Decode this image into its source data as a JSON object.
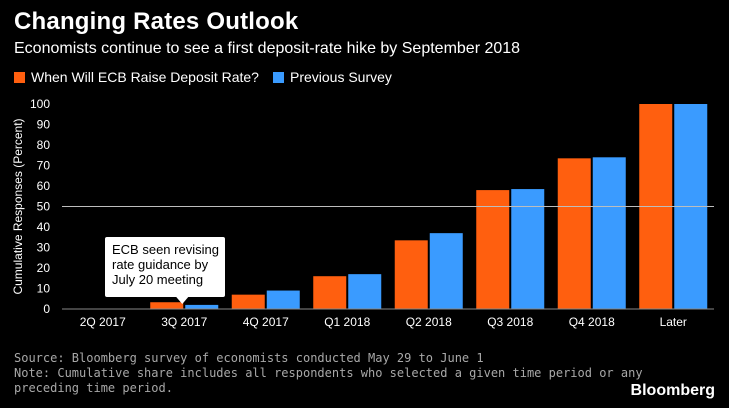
{
  "chart_data": {
    "type": "bar",
    "title": "Changing Rates Outlook",
    "subtitle": "Economists continue to see a first deposit-rate hike by September 2018",
    "ylabel": "Cumulative Responses (Percent)",
    "xlabel": "",
    "ylim": [
      0,
      100
    ],
    "yticks": [
      0,
      10,
      20,
      30,
      40,
      50,
      60,
      70,
      80,
      90,
      100
    ],
    "reference_line": 50,
    "categories": [
      "2Q 2017",
      "3Q 2017",
      "4Q 2017",
      "Q1 2018",
      "Q2 2018",
      "Q3 2018",
      "Q4 2018",
      "Later"
    ],
    "series": [
      {
        "name": "When Will ECB Raise Deposit Rate?",
        "color": "#ff5f0f",
        "values": [
          0,
          3.3,
          7,
          16,
          33.5,
          58,
          73.5,
          100
        ]
      },
      {
        "name": "Previous Survey",
        "color": "#3a9bff",
        "values": [
          0,
          2,
          9,
          17,
          37,
          58.5,
          74,
          100
        ]
      }
    ],
    "annotation": {
      "lines": [
        "ECB seen revising",
        "rate guidance by",
        "July 20 meeting"
      ],
      "category": "3Q 2017"
    },
    "grid": false,
    "legend": "top-left"
  },
  "footer": {
    "source": "Source: Bloomberg survey of economists conducted May 29 to June 1",
    "note_line1": "Note: Cumulative share includes all respondents who selected a given time period or any",
    "note_line2": "preceding time period."
  },
  "brand": "Bloomberg"
}
